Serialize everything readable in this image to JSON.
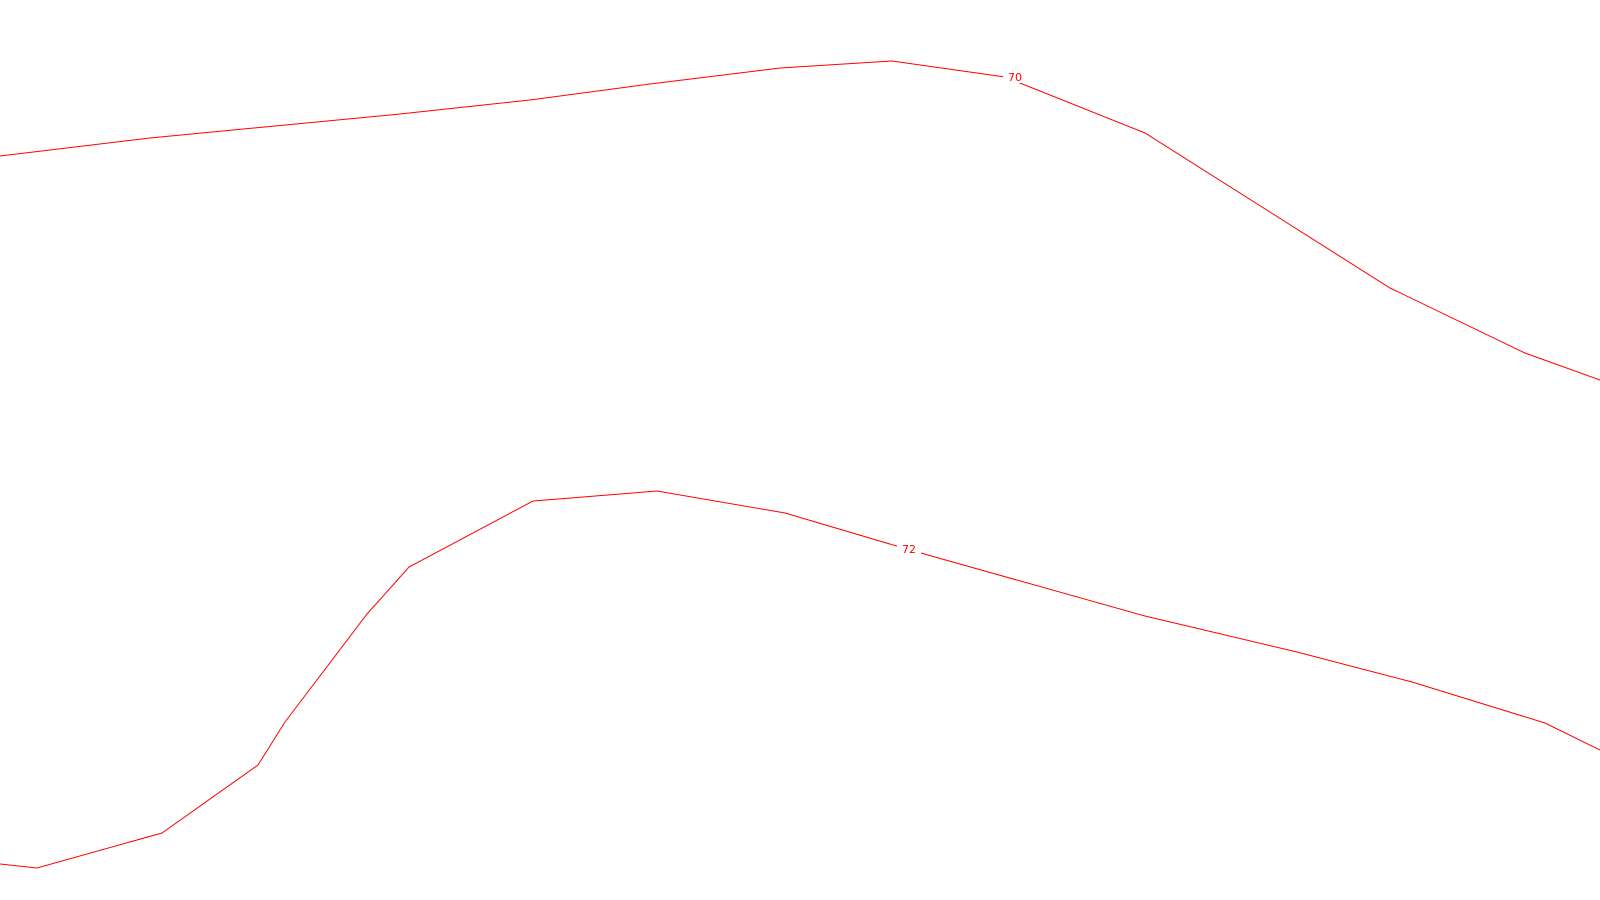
{
  "map": {
    "background": "#ffffff",
    "contours": [
      {
        "label": "70",
        "color": "#ff0000"
      },
      {
        "label": "72",
        "color": "#ff0000"
      }
    ]
  }
}
